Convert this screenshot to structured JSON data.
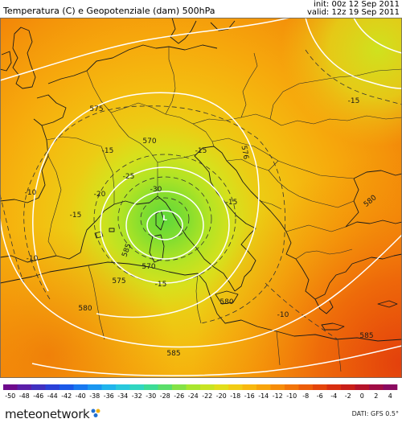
{
  "header": {
    "title": "Temperatura (C) e Geopotenziale (dam) 500hPa",
    "init": "init: 00z 12 Sep 2011",
    "valid": "valid: 12z 19 Sep 2011"
  },
  "map": {
    "isotherm_labels": [
      "-30",
      "-25",
      "-20",
      "-15",
      "-15",
      "-15",
      "-15",
      "-15",
      "-10",
      "-10",
      "-10",
      "-15"
    ],
    "height_labels": [
      "585",
      "570",
      "575",
      "570",
      "576",
      "575",
      "580",
      "585",
      "580",
      "580",
      "585"
    ]
  },
  "colorbar": {
    "values": [
      -50,
      -48,
      -46,
      -44,
      -42,
      -40,
      -38,
      -36,
      -34,
      -32,
      -30,
      -28,
      -26,
      -24,
      -22,
      -20,
      -18,
      -16,
      -14,
      -12,
      -10,
      -8,
      -6,
      -4,
      -2,
      0,
      2,
      4
    ],
    "colors": [
      "#6e0a8c",
      "#5a1ea8",
      "#4030c0",
      "#2a40d8",
      "#1a58e8",
      "#1878f0",
      "#1a96f0",
      "#20b4ec",
      "#28c8dc",
      "#30d6c0",
      "#3cdc96",
      "#5ade6a",
      "#84e246",
      "#a8e62e",
      "#c8e422",
      "#e2de1a",
      "#f2cc14",
      "#f8b80e",
      "#f8a40a",
      "#f68c08",
      "#f27408",
      "#ec5c08",
      "#e4440a",
      "#d82e10",
      "#c81e18",
      "#b4122a",
      "#a00c44",
      "#8a0a60"
    ]
  },
  "footer": {
    "logo": "meteonetwork",
    "source": "DATI: GFS 0.5°"
  }
}
